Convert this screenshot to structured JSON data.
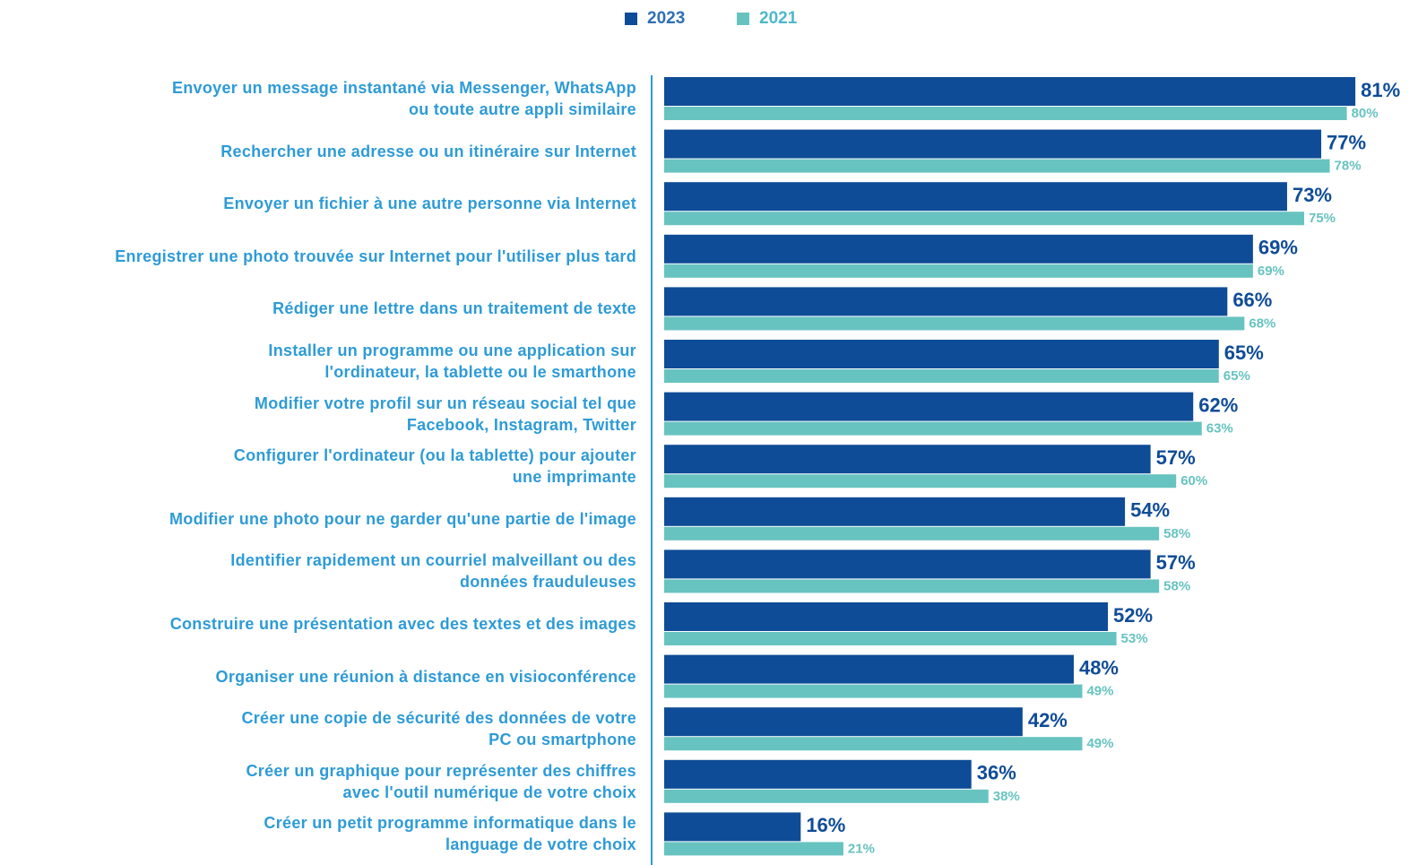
{
  "chart_data": {
    "type": "bar",
    "orientation": "horizontal",
    "categories": [
      "Envoyer un message instantané via Messenger, WhatsApp\nou toute autre appli similaire",
      "Rechercher une adresse ou un itinéraire sur Internet",
      "Envoyer un fichier à une autre personne via Internet",
      "Enregistrer une photo trouvée sur Internet pour l'utiliser plus tard",
      "Rédiger une lettre dans un traitement de texte",
      "Installer un programme ou une application sur\nl'ordinateur, la tablette ou le smarthone",
      "Modifier votre profil sur un réseau social tel que\nFacebook, Instagram, Twitter",
      "Configurer l'ordinateur (ou la tablette) pour ajouter\nune imprimante",
      "Modifier une photo pour ne garder qu'une partie de l'image",
      "Identifier rapidement un courriel malveillant ou des\ndonnées frauduleuses",
      "Construire une présentation avec des textes et des images",
      "Organiser une réunion à distance en visioconférence",
      "Créer une copie de sécurité des données de votre\nPC ou smartphone",
      "Créer un graphique pour représenter des chiffres\navec l'outil numérique de votre choix",
      "Créer un petit programme informatique dans le\nlanguage de votre choix"
    ],
    "series": [
      {
        "name": "2023",
        "color": "#0f4c97",
        "values": [
          81,
          77,
          73,
          69,
          66,
          65,
          62,
          57,
          54,
          57,
          52,
          48,
          42,
          36,
          16
        ],
        "value_labels": [
          "81%",
          "77%",
          "73%",
          "69%",
          "66%",
          "65%",
          "62%",
          "57%",
          "54%",
          "57%",
          "52%",
          "48%",
          "42%",
          "36%",
          "16%"
        ]
      },
      {
        "name": "2021",
        "color": "#67c3c0",
        "values": [
          80,
          78,
          75,
          69,
          68,
          65,
          63,
          60,
          58,
          58,
          53,
          49,
          49,
          38,
          21
        ],
        "value_labels": [
          "80%",
          "78%",
          "75%",
          "69%",
          "68%",
          "65%",
          "63%",
          "60%",
          "58%",
          "58%",
          "53%",
          "49%",
          "49%",
          "38%",
          "21%"
        ]
      }
    ],
    "legend": "top"
  }
}
